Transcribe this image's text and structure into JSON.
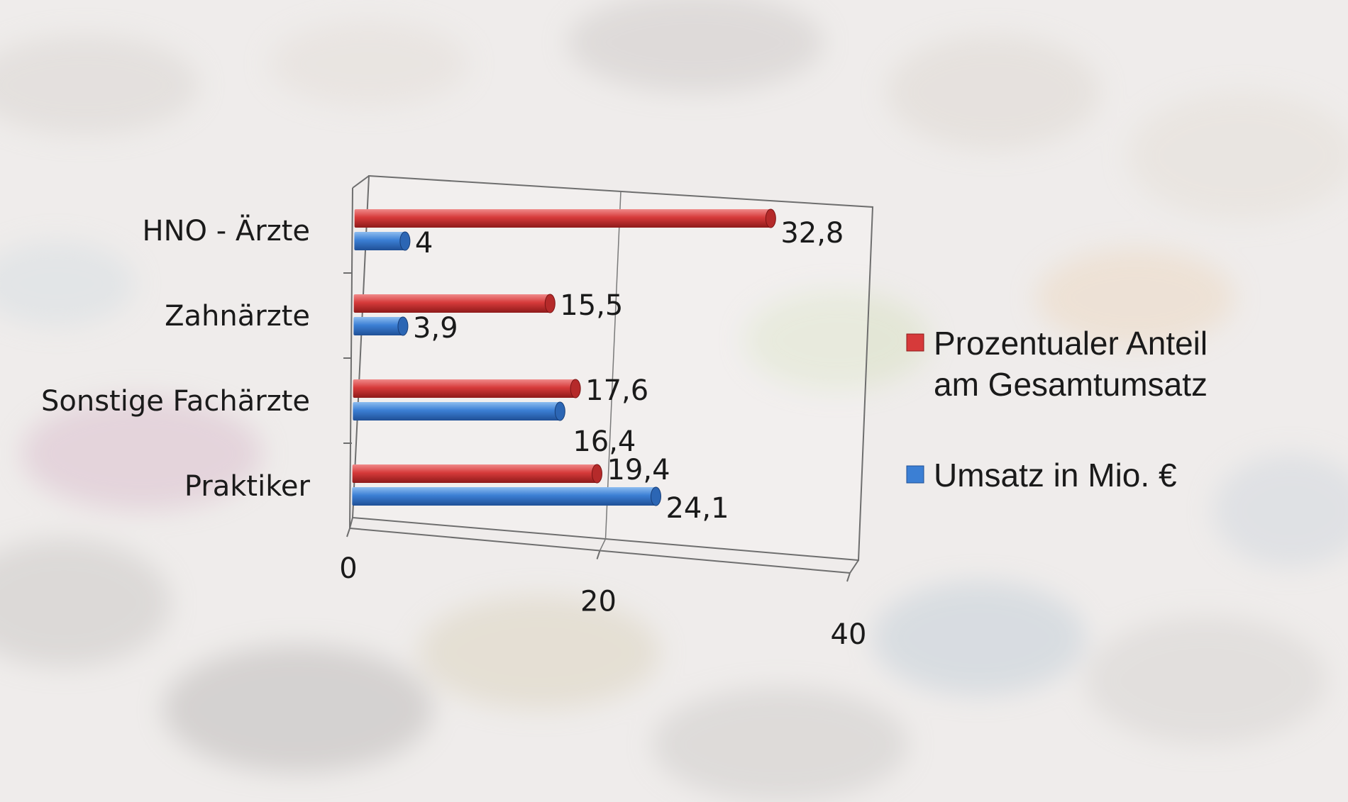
{
  "colors": {
    "series_red": "#d63a3a",
    "series_blue": "#3b7fd4",
    "background": "#e9e6e4"
  },
  "chart_data": {
    "type": "bar",
    "orientation": "horizontal-3d",
    "categories": [
      "HNO - Ärzte",
      "Zahnärzte",
      "Sonstige Fachärzte",
      "Praktiker"
    ],
    "series": [
      {
        "name_lines": [
          "Prozentualer Anteil",
          "am Gesamtumsatz"
        ],
        "color": "#d63a3a",
        "values": [
          32.8,
          15.5,
          17.6,
          19.4
        ],
        "labels": [
          "32,8",
          "15,5",
          "17,6",
          "19,4"
        ]
      },
      {
        "name_lines": [
          "Umsatz in Mio. €"
        ],
        "color": "#3b7fd4",
        "values": [
          4,
          3.9,
          16.4,
          24.1
        ],
        "labels": [
          "4",
          "3,9",
          "16,4",
          "24,1"
        ]
      }
    ],
    "x_ticks": [
      "0",
      "20",
      "40"
    ],
    "xlim": [
      0,
      40
    ],
    "grid": true,
    "legend_position": "right"
  }
}
